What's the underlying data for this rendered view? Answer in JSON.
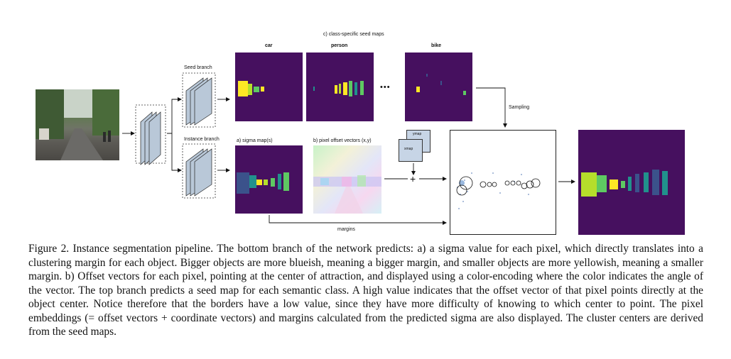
{
  "figure": {
    "labels": {
      "seed_maps_title": "c) class-specific seed maps",
      "car": "car",
      "person": "person",
      "bike": "bike",
      "seed_branch": "Seed branch",
      "instance_branch": "Instance branch",
      "sigma": "a)  sigma map(s)",
      "offsets": "b) pixel offset vectors (x,y)",
      "ymap": "ymap",
      "xmap": "xmap",
      "sampling": "Sampling",
      "margins": "margins",
      "ellipsis": "•••",
      "plus": "+"
    },
    "colors": {
      "viridis_dark": "#46105f",
      "viridis_yellow": "#fde725",
      "viridis_green": "#5ec962",
      "viridis_teal": "#21918c",
      "map_blue": "#c7d5e6",
      "layer_blue": "#b9c8d8"
    }
  },
  "caption": {
    "text": "Figure 2. Instance segmentation pipeline. The bottom branch of the network predicts: a) a sigma value for each pixel, which directly translates into a clustering margin for each object. Bigger objects are more blueish, meaning a bigger margin, and smaller objects are more yellowish, meaning a smaller margin. b) Offset vectors for each pixel, pointing at the center of attraction, and displayed using a color-encoding where the color indicates the angle of the vector. The top branch predicts a seed map for each semantic class. A high value indicates that the offset vector of that pixel points directly at the object center. Notice therefore that the borders have a low value, since they have more difficulty of knowing to which center to point. The pixel embeddings (= offset vectors + coordinate vectors) and margins calculated from the predicted sigma are also displayed. The cluster centers are derived from the seed maps."
  }
}
